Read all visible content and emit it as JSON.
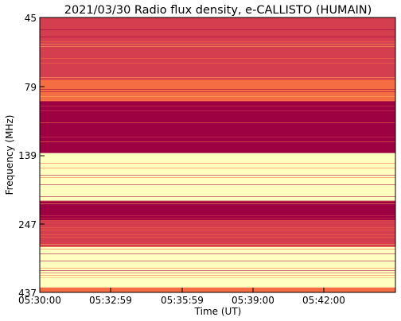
{
  "chart_data": {
    "type": "heatmap",
    "title": "2021/03/30  Radio flux density, e-CALLISTO (HUMAIN)",
    "xlabel": "Time (UT)",
    "ylabel": "Frequency (MHz)",
    "x_ticks": [
      "05:30:00",
      "05:32:59",
      "05:35:59",
      "05:39:00",
      "05:42:00"
    ],
    "y_ticks": [
      "45",
      "79",
      "139",
      "247",
      "437"
    ],
    "y_scale": "log",
    "y_range_mhz": [
      45,
      437
    ],
    "colormap": "Spectral_r",
    "grid": false,
    "legend": "none",
    "colors": {
      "background": "#9e0142",
      "low": "#d53e4f",
      "mid_low": "#f46d43",
      "mid": "#fdae61",
      "mid_high": "#fee08b",
      "high": "#ffffbf",
      "peak": "#abdda4",
      "extreme": "#3288bd"
    },
    "bands": [
      {
        "from_mhz": 45,
        "to_mhz": 75,
        "level": "low"
      },
      {
        "from_mhz": 75,
        "to_mhz": 90,
        "level": "mid_low"
      },
      {
        "from_mhz": 90,
        "to_mhz": 138,
        "level": "background"
      },
      {
        "from_mhz": 138,
        "to_mhz": 205,
        "level": "high"
      },
      {
        "from_mhz": 205,
        "to_mhz": 240,
        "level": "background"
      },
      {
        "from_mhz": 240,
        "to_mhz": 300,
        "level": "low"
      },
      {
        "from_mhz": 300,
        "to_mhz": 420,
        "level": "high"
      },
      {
        "from_mhz": 420,
        "to_mhz": 437,
        "level": "mid_low"
      }
    ]
  }
}
